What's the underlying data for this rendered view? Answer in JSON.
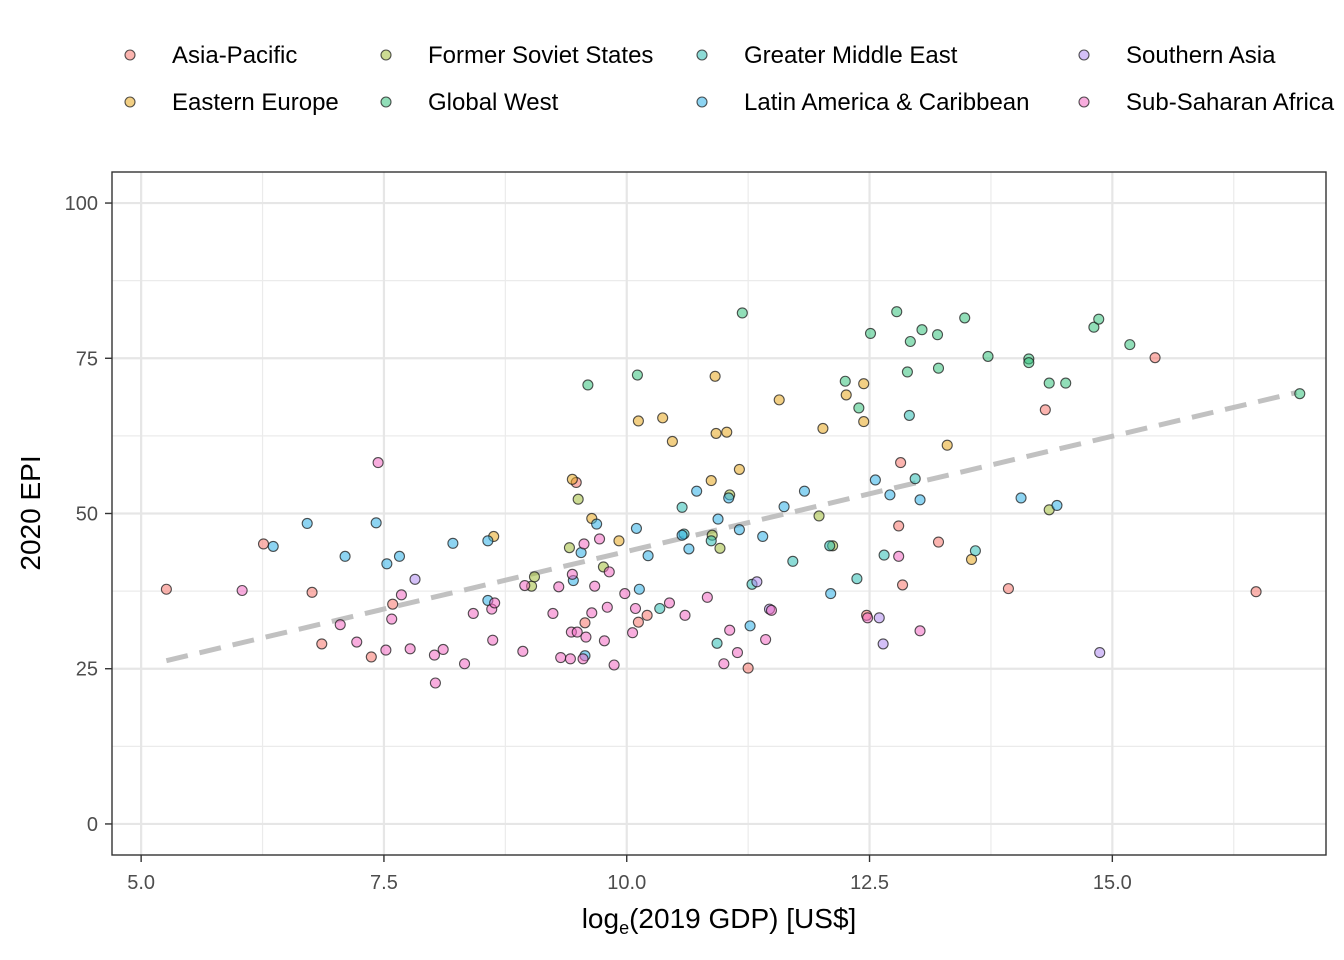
{
  "chart_data": {
    "type": "scatter",
    "xlabel_main": "log",
    "xlabel_sub": "e",
    "xlabel_rest": "(2019 GDP) [US$]",
    "ylabel": "2020 EPI",
    "xlim": [
      4.7,
      17.2
    ],
    "ylim": [
      -5,
      105
    ],
    "x_ticks": [
      5.0,
      7.5,
      10.0,
      12.5,
      15.0
    ],
    "x_tick_labels": [
      "5.0",
      "7.5",
      "10.0",
      "12.5",
      "15.0"
    ],
    "y_ticks": [
      0,
      25,
      50,
      75,
      100
    ],
    "y_tick_labels": [
      "0",
      "25",
      "50",
      "75",
      "100"
    ],
    "grid": true,
    "legend_position": "top",
    "trend_line": {
      "style": "dashed",
      "color": "#bebebe",
      "points": [
        [
          5.26,
          26.3
        ],
        [
          16.9,
          69.5
        ]
      ]
    },
    "series": [
      {
        "name": "Asia-Pacific",
        "color": "#F8766D",
        "points": [
          [
            5.26,
            37.8
          ],
          [
            6.26,
            45.1
          ],
          [
            6.76,
            37.3
          ],
          [
            6.86,
            29.0
          ],
          [
            7.37,
            26.9
          ],
          [
            7.59,
            35.4
          ],
          [
            9.48,
            55.0
          ],
          [
            9.57,
            32.4
          ],
          [
            10.12,
            32.5
          ],
          [
            10.21,
            33.6
          ],
          [
            11.25,
            25.1
          ],
          [
            12.47,
            33.6
          ],
          [
            12.82,
            58.2
          ],
          [
            12.8,
            48.0
          ],
          [
            12.84,
            38.5
          ],
          [
            13.21,
            45.4
          ],
          [
            13.93,
            37.9
          ],
          [
            14.31,
            66.7
          ],
          [
            15.44,
            75.1
          ],
          [
            16.48,
            37.4
          ]
        ]
      },
      {
        "name": "Eastern Europe",
        "color": "#E7A81F",
        "points": [
          [
            8.63,
            46.3
          ],
          [
            9.44,
            55.5
          ],
          [
            9.64,
            49.2
          ],
          [
            9.92,
            45.6
          ],
          [
            10.12,
            64.9
          ],
          [
            10.37,
            65.4
          ],
          [
            10.47,
            61.6
          ],
          [
            10.87,
            55.3
          ],
          [
            10.91,
            72.1
          ],
          [
            10.92,
            62.9
          ],
          [
            11.03,
            63.1
          ],
          [
            11.16,
            57.1
          ],
          [
            11.57,
            68.3
          ],
          [
            12.02,
            63.7
          ],
          [
            12.26,
            69.1
          ],
          [
            12.44,
            70.9
          ],
          [
            12.44,
            64.8
          ],
          [
            13.3,
            61.0
          ],
          [
            13.55,
            42.6
          ]
        ]
      },
      {
        "name": "Former Soviet States",
        "color": "#A3BE3A",
        "points": [
          [
            9.02,
            38.3
          ],
          [
            9.05,
            39.8
          ],
          [
            9.41,
            44.5
          ],
          [
            9.5,
            52.3
          ],
          [
            9.76,
            41.4
          ],
          [
            10.88,
            46.5
          ],
          [
            10.96,
            44.4
          ],
          [
            11.06,
            53.0
          ],
          [
            11.98,
            49.6
          ],
          [
            12.12,
            44.8
          ],
          [
            14.35,
            50.6
          ]
        ]
      },
      {
        "name": "Global West",
        "color": "#36C27E",
        "points": [
          [
            9.6,
            70.7
          ],
          [
            10.11,
            72.3
          ],
          [
            11.19,
            82.3
          ],
          [
            12.25,
            71.3
          ],
          [
            12.39,
            67.0
          ],
          [
            12.51,
            79.0
          ],
          [
            12.78,
            82.5
          ],
          [
            12.89,
            72.8
          ],
          [
            12.92,
            77.7
          ],
          [
            13.04,
            79.6
          ],
          [
            13.2,
            78.8
          ],
          [
            13.21,
            73.4
          ],
          [
            13.48,
            81.5
          ],
          [
            13.72,
            75.3
          ],
          [
            14.14,
            74.9
          ],
          [
            14.14,
            74.3
          ],
          [
            14.35,
            71.0
          ],
          [
            14.52,
            71.0
          ],
          [
            14.81,
            80.0
          ],
          [
            14.86,
            81.3
          ],
          [
            15.18,
            77.2
          ],
          [
            16.93,
            69.3
          ]
        ]
      },
      {
        "name": "Greater Middle East",
        "color": "#2DBDB5",
        "points": [
          [
            10.34,
            34.7
          ],
          [
            10.57,
            51.0
          ],
          [
            10.59,
            46.7
          ],
          [
            10.87,
            45.6
          ],
          [
            10.93,
            29.1
          ],
          [
            11.29,
            38.6
          ],
          [
            11.71,
            42.3
          ],
          [
            12.09,
            44.8
          ],
          [
            12.37,
            39.5
          ],
          [
            12.65,
            43.3
          ],
          [
            12.91,
            65.8
          ],
          [
            12.97,
            55.6
          ],
          [
            13.59,
            44.0
          ]
        ]
      },
      {
        "name": "Latin America & Caribbean",
        "color": "#2FB1E8",
        "points": [
          [
            6.36,
            44.7
          ],
          [
            6.71,
            48.4
          ],
          [
            7.1,
            43.1
          ],
          [
            7.42,
            48.5
          ],
          [
            7.53,
            41.9
          ],
          [
            7.66,
            43.1
          ],
          [
            8.21,
            45.2
          ],
          [
            8.57,
            36.0
          ],
          [
            8.57,
            45.6
          ],
          [
            9.45,
            39.2
          ],
          [
            9.53,
            43.7
          ],
          [
            9.57,
            27.1
          ],
          [
            9.69,
            48.3
          ],
          [
            10.1,
            47.6
          ],
          [
            10.13,
            37.8
          ],
          [
            10.22,
            43.2
          ],
          [
            10.57,
            46.5
          ],
          [
            10.64,
            44.3
          ],
          [
            10.72,
            53.6
          ],
          [
            10.94,
            49.1
          ],
          [
            11.05,
            52.5
          ],
          [
            11.16,
            47.4
          ],
          [
            11.27,
            31.9
          ],
          [
            11.4,
            46.3
          ],
          [
            11.62,
            51.1
          ],
          [
            11.83,
            53.6
          ],
          [
            12.1,
            37.1
          ],
          [
            12.56,
            55.4
          ],
          [
            12.71,
            53.0
          ],
          [
            13.02,
            52.2
          ],
          [
            14.06,
            52.5
          ],
          [
            14.43,
            51.3
          ]
        ]
      },
      {
        "name": "Southern Asia",
        "color": "#B08CF0",
        "points": [
          [
            7.82,
            39.4
          ],
          [
            11.34,
            39.0
          ],
          [
            11.47,
            34.6
          ],
          [
            12.6,
            33.2
          ],
          [
            12.64,
            29.0
          ],
          [
            14.87,
            27.6
          ]
        ]
      },
      {
        "name": "Sub-Saharan Africa",
        "color": "#F269C2",
        "points": [
          [
            6.04,
            37.6
          ],
          [
            7.05,
            32.1
          ],
          [
            7.22,
            29.3
          ],
          [
            7.44,
            58.2
          ],
          [
            7.52,
            28.0
          ],
          [
            7.58,
            33.0
          ],
          [
            7.68,
            36.9
          ],
          [
            7.77,
            28.2
          ],
          [
            8.02,
            27.2
          ],
          [
            8.03,
            22.7
          ],
          [
            8.11,
            28.1
          ],
          [
            8.33,
            25.8
          ],
          [
            8.42,
            33.9
          ],
          [
            8.61,
            34.6
          ],
          [
            8.62,
            29.6
          ],
          [
            8.64,
            35.6
          ],
          [
            8.93,
            27.8
          ],
          [
            8.95,
            38.4
          ],
          [
            9.24,
            33.9
          ],
          [
            9.3,
            38.2
          ],
          [
            9.32,
            26.8
          ],
          [
            9.42,
            26.6
          ],
          [
            9.43,
            30.9
          ],
          [
            9.44,
            40.2
          ],
          [
            9.49,
            30.9
          ],
          [
            9.55,
            26.6
          ],
          [
            9.56,
            45.1
          ],
          [
            9.58,
            30.1
          ],
          [
            9.64,
            34.0
          ],
          [
            9.67,
            38.3
          ],
          [
            9.72,
            45.9
          ],
          [
            9.77,
            29.5
          ],
          [
            9.8,
            34.9
          ],
          [
            9.82,
            40.6
          ],
          [
            9.87,
            25.6
          ],
          [
            9.98,
            37.1
          ],
          [
            10.06,
            30.8
          ],
          [
            10.09,
            34.7
          ],
          [
            10.44,
            35.6
          ],
          [
            10.6,
            33.6
          ],
          [
            10.83,
            36.5
          ],
          [
            11.0,
            25.8
          ],
          [
            11.06,
            31.2
          ],
          [
            11.14,
            27.6
          ],
          [
            11.43,
            29.7
          ],
          [
            11.49,
            34.4
          ],
          [
            12.48,
            33.2
          ],
          [
            12.8,
            43.1
          ],
          [
            13.02,
            31.1
          ]
        ]
      }
    ]
  }
}
